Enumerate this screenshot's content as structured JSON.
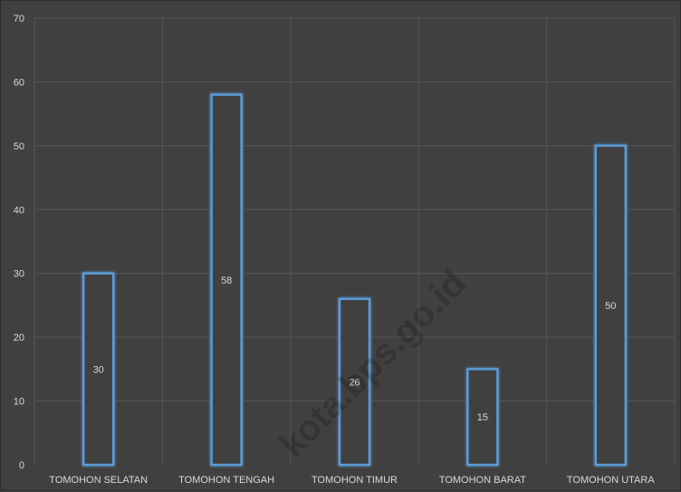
{
  "chart_data": {
    "type": "bar",
    "categories": [
      "TOMOHON SELATAN",
      "TOMOHON TENGAH",
      "TOMOHON TIMUR",
      "TOMOHON BARAT",
      "TOMOHON UTARA"
    ],
    "values": [
      30,
      58,
      26,
      15,
      50
    ],
    "data_labels": [
      "30",
      "58",
      "26",
      "15",
      "50"
    ],
    "ylim": [
      0,
      70
    ],
    "yticks": [
      0,
      10,
      20,
      30,
      40,
      50,
      60,
      70
    ],
    "title": "",
    "xlabel": "",
    "ylabel": "",
    "grid": true,
    "legend": "none",
    "colors": {
      "background": "#404040",
      "bar_fill": "#404040",
      "bar_outline": "#5b9bd5",
      "gridline": "#575757",
      "text": "#d9d9d9"
    }
  },
  "watermark": "kota.bps.go.id"
}
